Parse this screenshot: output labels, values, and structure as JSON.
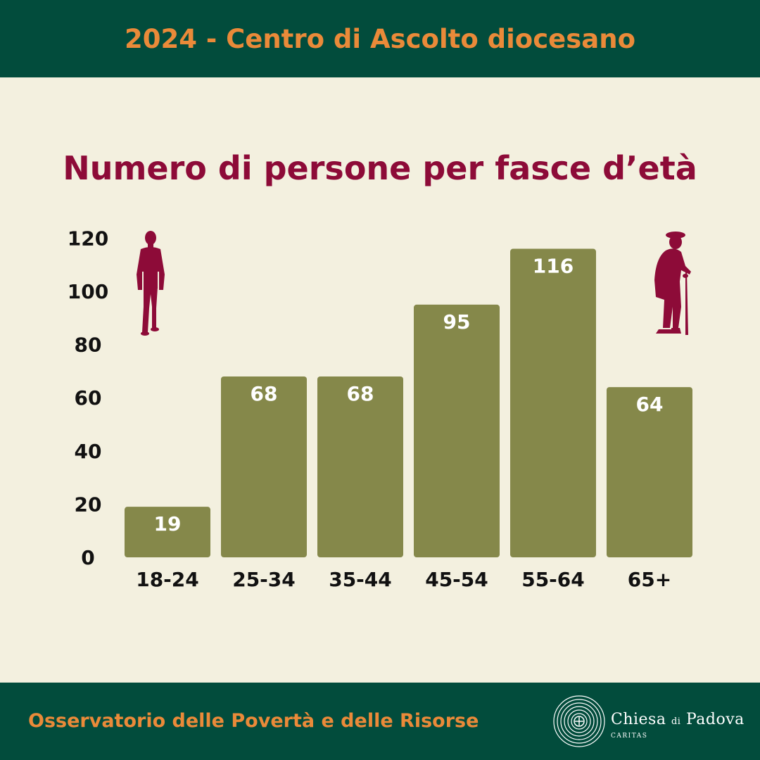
{
  "header": {
    "title": "2024 - Centro di Ascolto diocesano"
  },
  "colors": {
    "header_bg": "#024c3c",
    "accent_orange": "#ea8a39",
    "title_red": "#8d0b38",
    "bar": "#85884a",
    "background": "#f3f0df"
  },
  "chart_data": {
    "type": "bar",
    "title": "Numero di persone per fasce d’età",
    "xlabel": "",
    "ylabel": "",
    "categories": [
      "18-24",
      "25-34",
      "35-44",
      "45-54",
      "55-64",
      "65+"
    ],
    "values": [
      19,
      68,
      68,
      95,
      116,
      64
    ],
    "ylim": [
      0,
      120
    ],
    "yticks": [
      0,
      20,
      40,
      60,
      80,
      100,
      120
    ],
    "grid": false,
    "legend": "none",
    "data_labels": true
  },
  "icons": {
    "left": "young-man-walking-icon",
    "right": "elderly-man-with-cane-icon"
  },
  "footer": {
    "text": "Osservatorio delle Povertà e delle Risorse",
    "logo_main_1": "Chiesa",
    "logo_main_small": "di",
    "logo_main_2": "Padova",
    "logo_sub": "CARITAS"
  }
}
